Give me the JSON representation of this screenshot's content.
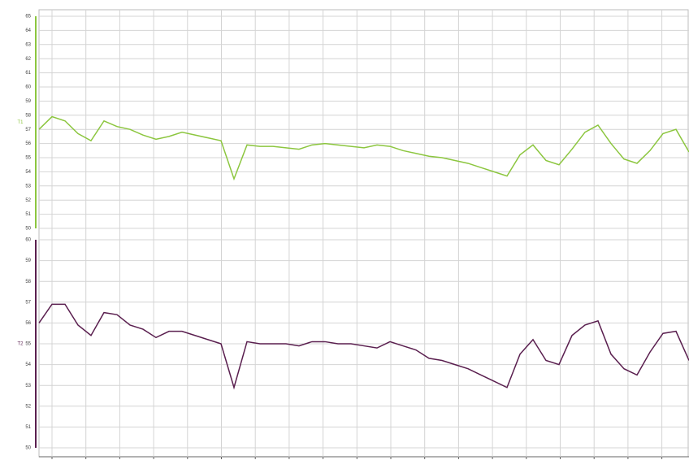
{
  "chart_data": [
    {
      "type": "line",
      "ylabel": "T1",
      "ylim": [
        50,
        65
      ],
      "yticks": [
        50,
        51,
        52,
        53,
        54,
        55,
        56,
        57,
        58,
        59,
        60,
        61,
        62,
        63,
        64,
        65
      ],
      "grid": true,
      "series": [
        {
          "color": "#8cc63f",
          "values": [
            57.0,
            57.9,
            57.6,
            56.7,
            56.2,
            57.6,
            57.2,
            57.0,
            56.6,
            56.3,
            56.5,
            56.8,
            56.6,
            56.4,
            56.2,
            53.5,
            55.9,
            55.8,
            55.8,
            55.7,
            55.6,
            55.9,
            56.0,
            55.9,
            55.8,
            55.7,
            55.9,
            55.8,
            55.5,
            55.3,
            55.1,
            55.0,
            54.8,
            54.6,
            54.3,
            54.0,
            53.7,
            55.2,
            55.9,
            54.8,
            54.5,
            55.6,
            56.8,
            57.3,
            56.0,
            54.9,
            54.6,
            55.5,
            56.7,
            57.0,
            55.4
          ]
        }
      ]
    },
    {
      "type": "line",
      "ylabel": "T2",
      "ylim": [
        50,
        60
      ],
      "yticks": [
        50,
        51,
        52,
        53,
        54,
        55,
        56,
        57,
        58,
        59,
        60
      ],
      "grid": true,
      "series": [
        {
          "color": "#5a1f4f",
          "values": [
            56.0,
            56.9,
            56.9,
            55.9,
            55.4,
            56.5,
            56.4,
            55.9,
            55.7,
            55.3,
            55.6,
            55.6,
            55.4,
            55.2,
            55.0,
            52.9,
            55.1,
            55.0,
            55.0,
            55.0,
            54.9,
            55.1,
            55.1,
            55.0,
            55.0,
            54.9,
            54.8,
            55.1,
            54.9,
            54.7,
            54.3,
            54.2,
            54.0,
            53.8,
            53.5,
            53.2,
            52.9,
            54.5,
            55.2,
            54.2,
            54.0,
            55.4,
            55.9,
            56.1,
            54.5,
            53.8,
            53.5,
            54.6,
            55.5,
            55.6,
            54.2
          ]
        }
      ]
    }
  ]
}
